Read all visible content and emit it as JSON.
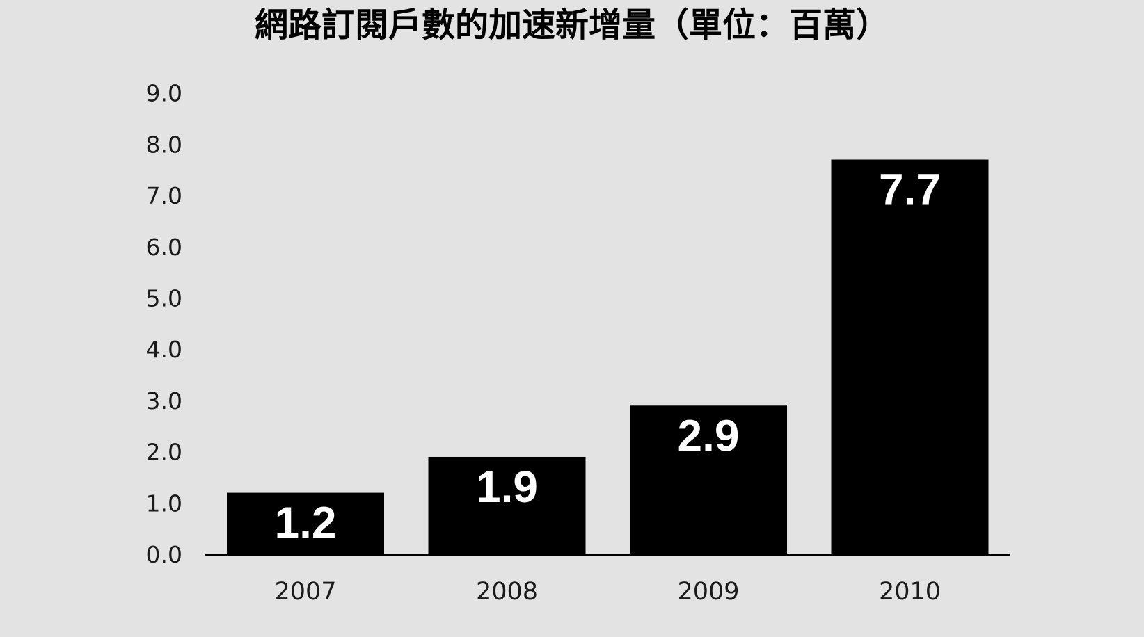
{
  "chart_data": {
    "type": "bar",
    "title": "網路訂閱戶數的加速新增量（單位：百萬）",
    "xlabel": "",
    "ylabel": "",
    "categories": [
      "2007",
      "2008",
      "2009",
      "2010"
    ],
    "values": [
      1.2,
      1.9,
      2.9,
      7.7
    ],
    "data_labels": [
      "1.2",
      "1.9",
      "2.9",
      "7.7"
    ],
    "ylim": [
      0,
      9
    ],
    "yticks": [
      "0.0",
      "1.0",
      "2.0",
      "3.0",
      "4.0",
      "5.0",
      "6.0",
      "7.0",
      "8.0",
      "9.0"
    ],
    "grid": false,
    "legend": "none",
    "colors": {
      "background": "#e3e3e3",
      "bar": "#000000",
      "bar_label": "#ffffff",
      "text": "#1a1a1a"
    }
  }
}
